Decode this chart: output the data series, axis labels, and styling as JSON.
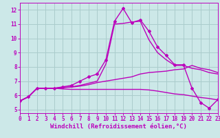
{
  "background_color": "#cce8e8",
  "grid_color": "#aacccc",
  "line_color": "#bb00bb",
  "xlabel": "Windchill (Refroidissement éolien,°C)",
  "xlim": [
    0,
    23
  ],
  "ylim": [
    4.75,
    12.5
  ],
  "xticks": [
    0,
    1,
    2,
    3,
    4,
    5,
    6,
    7,
    8,
    9,
    10,
    11,
    12,
    13,
    14,
    15,
    16,
    17,
    18,
    19,
    20,
    21,
    22,
    23
  ],
  "yticks": [
    5,
    6,
    7,
    8,
    9,
    10,
    11,
    12
  ],
  "lines": [
    {
      "x": [
        0,
        1,
        2,
        3,
        4,
        5,
        6,
        7,
        8,
        9,
        10,
        11,
        12,
        13,
        14,
        15,
        16,
        17,
        18,
        19,
        20,
        21,
        22,
        23
      ],
      "y": [
        5.6,
        5.9,
        6.5,
        6.5,
        6.5,
        6.6,
        6.7,
        7.0,
        7.3,
        7.5,
        8.5,
        11.2,
        12.1,
        11.1,
        11.3,
        10.5,
        9.4,
        8.8,
        8.15,
        8.15,
        6.5,
        5.5,
        5.1,
        5.7
      ],
      "marker": true,
      "lw": 1.0
    },
    {
      "x": [
        0,
        1,
        2,
        3,
        4,
        5,
        6,
        7,
        8,
        9,
        10,
        11,
        12,
        13,
        14,
        15,
        16,
        17,
        18,
        19,
        20,
        21,
        22,
        23
      ],
      "y": [
        5.6,
        5.9,
        6.5,
        6.5,
        6.5,
        6.55,
        6.58,
        6.65,
        6.75,
        6.9,
        7.0,
        7.1,
        7.2,
        7.3,
        7.5,
        7.6,
        7.65,
        7.7,
        7.8,
        7.85,
        8.1,
        7.9,
        7.8,
        7.6
      ],
      "marker": false,
      "lw": 1.0
    },
    {
      "x": [
        0,
        1,
        2,
        3,
        4,
        5,
        6,
        7,
        8,
        9,
        10,
        11,
        12,
        13,
        14,
        15,
        16,
        17,
        18,
        19,
        20,
        21,
        22,
        23
      ],
      "y": [
        5.6,
        5.9,
        6.5,
        6.5,
        6.5,
        6.45,
        6.42,
        6.42,
        6.42,
        6.42,
        6.42,
        6.42,
        6.42,
        6.42,
        6.42,
        6.38,
        6.3,
        6.2,
        6.1,
        6.05,
        5.95,
        5.85,
        5.78,
        5.68
      ],
      "marker": false,
      "lw": 1.0
    },
    {
      "x": [
        0,
        1,
        2,
        3,
        4,
        5,
        6,
        7,
        8,
        9,
        10,
        11,
        12,
        13,
        14,
        15,
        16,
        17,
        18,
        19,
        20,
        21,
        22,
        23
      ],
      "y": [
        5.6,
        5.9,
        6.5,
        6.5,
        6.5,
        6.55,
        6.6,
        6.7,
        6.85,
        7.0,
        8.2,
        11.0,
        11.05,
        11.15,
        11.2,
        9.9,
        9.0,
        8.5,
        8.1,
        8.1,
        7.9,
        7.8,
        7.6,
        7.5
      ],
      "marker": false,
      "lw": 1.0
    }
  ]
}
